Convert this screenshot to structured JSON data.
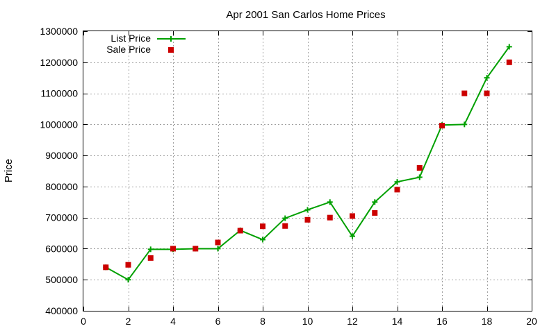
{
  "chart_data": {
    "type": "line",
    "title": "Apr 2001 San Carlos Home Prices",
    "xlabel": "",
    "ylabel": "Price",
    "xlim": [
      0,
      20
    ],
    "ylim": [
      400000,
      1300000
    ],
    "xticks": [
      0,
      2,
      4,
      6,
      8,
      10,
      12,
      14,
      16,
      18,
      20
    ],
    "yticks": [
      400000,
      500000,
      600000,
      700000,
      800000,
      900000,
      1000000,
      1100000,
      1200000,
      1300000
    ],
    "grid": true,
    "legend_position": "top-left",
    "series": [
      {
        "name": "List Price",
        "style": "line-with-plus-markers",
        "color": "#00a000",
        "x": [
          1,
          2,
          3,
          4,
          5,
          6,
          7,
          8,
          9,
          10,
          11,
          12,
          13,
          14,
          15,
          16,
          17,
          18,
          19
        ],
        "y": [
          540000,
          500000,
          598000,
          598000,
          600000,
          600000,
          659000,
          629000,
          698000,
          725000,
          750000,
          640000,
          750000,
          815000,
          830000,
          998000,
          1000000,
          1150000,
          1250000
        ]
      },
      {
        "name": "Sale Price",
        "style": "square-markers",
        "color": "#cc0000",
        "x": [
          1,
          2,
          3,
          4,
          5,
          6,
          7,
          8,
          9,
          10,
          11,
          12,
          13,
          14,
          15,
          16,
          17,
          18,
          19
        ],
        "y": [
          540000,
          548000,
          570000,
          600000,
          600000,
          620000,
          658000,
          672000,
          673000,
          693000,
          700000,
          705000,
          715000,
          790000,
          860000,
          996000,
          1100000,
          1100000,
          1200000
        ]
      }
    ]
  }
}
